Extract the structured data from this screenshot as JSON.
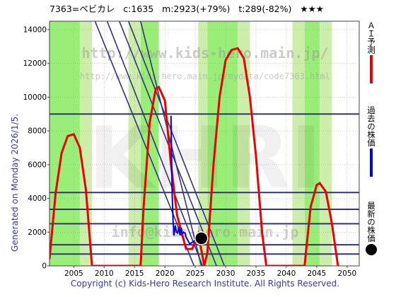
{
  "header": {
    "code_name": "7363=ベビカレ",
    "current": "c:1635",
    "max": "m:2923(+79%)",
    "target": "t:289(-82%)",
    "stars": "★★★"
  },
  "generated_text": "Generated on Monday 2026/1/5.",
  "watermark": {
    "url": "http://www.kids-hero.main.jp/",
    "detail_url": "http://www.kids-hero.main.jp/mydata/code7363.html",
    "logo": "KHRI",
    "mail": "info@kids-hero.main.jp"
  },
  "copyright": "Copyright (c) Kids-Hero Research Institute. All Rights Reserved.",
  "legend": {
    "ai_forecast": "ＡＩ予測",
    "past_price": "過去の株価",
    "latest_price": "最新の株価"
  },
  "colors": {
    "forecast": "#ee0000",
    "past": "#0000ee",
    "latest": "#000000",
    "band": "#99ee77",
    "band_light": "#cceeaa",
    "hline": "#333377"
  },
  "chart_data": {
    "type": "line",
    "xlim": [
      2001,
      2052
    ],
    "ylim": [
      0,
      14500
    ],
    "x_ticks": [
      2005,
      2010,
      2015,
      2020,
      2025,
      2030,
      2035,
      2040,
      2045,
      2050
    ],
    "y_ticks": [
      0,
      2000,
      4000,
      6000,
      8000,
      10000,
      12000,
      14000
    ],
    "hlines": [
      9000,
      4350,
      3350,
      2500,
      1250,
      700
    ],
    "series": [
      {
        "kind": "forecast",
        "points": [
          [
            2001,
            400
          ],
          [
            2002,
            4300
          ],
          [
            2003,
            6700
          ],
          [
            2004,
            7700
          ],
          [
            2005,
            7800
          ],
          [
            2006,
            7000
          ],
          [
            2007,
            4500
          ],
          [
            2008,
            0
          ],
          [
            2016,
            0
          ],
          [
            2016.5,
            3500
          ],
          [
            2017.5,
            8500
          ],
          [
            2018.5,
            10500
          ],
          [
            2019,
            10600
          ],
          [
            2020,
            9800
          ],
          [
            2021,
            6000
          ],
          [
            2022,
            3000
          ],
          [
            2023.5,
            1000
          ],
          [
            2024.5,
            1000
          ],
          [
            2025.5,
            1900
          ],
          [
            2026.5,
            0
          ],
          [
            2027,
            800
          ],
          [
            2028,
            6000
          ],
          [
            2029,
            10000
          ],
          [
            2030,
            12200
          ],
          [
            2031,
            12800
          ],
          [
            2032,
            12900
          ],
          [
            2033,
            12300
          ],
          [
            2034,
            10000
          ],
          [
            2035,
            6500
          ],
          [
            2036,
            2000
          ],
          [
            2036.7,
            0
          ],
          [
            2043,
            0
          ],
          [
            2044,
            3500
          ],
          [
            2045,
            4800
          ],
          [
            2045.5,
            4900
          ],
          [
            2046.5,
            4400
          ],
          [
            2047.5,
            2500
          ],
          [
            2048.5,
            0
          ]
        ]
      },
      {
        "kind": "past",
        "points": [
          [
            2021.0,
            8900
          ],
          [
            2021.1,
            6500
          ],
          [
            2021.2,
            4200
          ],
          [
            2021.35,
            2600
          ],
          [
            2021.5,
            1800
          ],
          [
            2021.7,
            2400
          ],
          [
            2021.9,
            2000
          ],
          [
            2022.1,
            1950
          ],
          [
            2022.3,
            2300
          ],
          [
            2022.5,
            1800
          ],
          [
            2022.7,
            2250
          ],
          [
            2022.9,
            1900
          ],
          [
            2023.1,
            2000
          ],
          [
            2023.3,
            1950
          ],
          [
            2023.5,
            1700
          ],
          [
            2023.8,
            1500
          ],
          [
            2024.1,
            1300
          ],
          [
            2024.5,
            1400
          ],
          [
            2024.9,
            1500
          ],
          [
            2025.3,
            1600
          ],
          [
            2025.7,
            1650
          ]
        ]
      }
    ],
    "latest": {
      "x": 2026,
      "y": 1635
    }
  }
}
